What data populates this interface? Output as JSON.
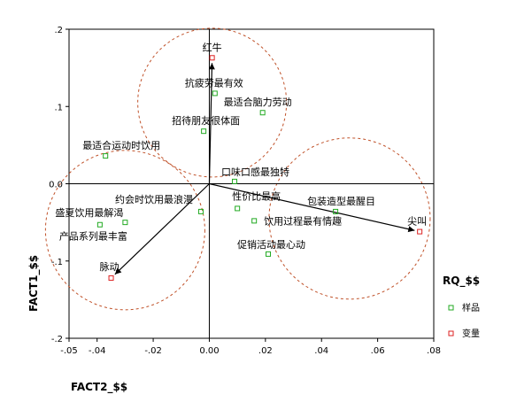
{
  "chart_data": {
    "type": "scatter",
    "title": "",
    "xlabel": "FACT2_$$",
    "ylabel": "FACT1_$$",
    "xlim": [
      -0.05,
      0.08
    ],
    "ylim": [
      -0.2,
      0.2
    ],
    "x_ticks": [
      -0.05,
      -0.04,
      -0.02,
      0.0,
      0.02,
      0.04,
      0.06,
      0.08
    ],
    "x_tick_labels": [
      "-.05",
      "-.04",
      "-.02",
      "0.00",
      ".02",
      ".04",
      ".06",
      ".08"
    ],
    "y_ticks": [
      -0.2,
      -0.1,
      0.0,
      0.1,
      0.2
    ],
    "y_tick_labels": [
      "-.2",
      "-.1",
      "0.0",
      ".1",
      ".2"
    ],
    "grid": false,
    "legend_title": "RQ_$$",
    "legend_placement": "right",
    "series": [
      {
        "name": "样品",
        "color": "#22aa22",
        "marker": "square-open",
        "points": [
          {
            "label": "抗疲劳最有效",
            "x": 0.002,
            "y": 0.117
          },
          {
            "label": "最适合脑力劳动",
            "x": 0.019,
            "y": 0.092
          },
          {
            "label": "招待朋友很体面",
            "x": -0.002,
            "y": 0.068
          },
          {
            "label": "最适合运动时饮用",
            "x": -0.037,
            "y": 0.036
          },
          {
            "label": "口味口感最独特",
            "x": 0.009,
            "y": 0.003
          },
          {
            "label": "约会时饮用最浪漫",
            "x": -0.003,
            "y": -0.036
          },
          {
            "label": "性价比最高",
            "x": 0.01,
            "y": -0.032
          },
          {
            "label": "包装造型最醒目",
            "x": 0.045,
            "y": -0.036
          },
          {
            "label": "盛夏饮用最解渴",
            "x": -0.03,
            "y": -0.05
          },
          {
            "label": "产品系列最丰富",
            "x": -0.039,
            "y": -0.053
          },
          {
            "label": "饮用过程最有情趣",
            "x": 0.016,
            "y": -0.048
          },
          {
            "label": "促销活动最心动",
            "x": 0.021,
            "y": -0.091
          }
        ]
      },
      {
        "name": "变量",
        "color": "#dd2222",
        "marker": "square-open",
        "points": [
          {
            "label": "红牛",
            "x": 0.001,
            "y": 0.163
          },
          {
            "label": "尖叫",
            "x": 0.075,
            "y": -0.062
          },
          {
            "label": "脉动",
            "x": -0.035,
            "y": -0.122
          }
        ]
      }
    ],
    "annotations": {
      "vectors_from_origin_to": [
        "红牛",
        "尖叫",
        "脉动"
      ],
      "dashed_circles_around": [
        "红牛",
        "尖叫",
        "脉动"
      ]
    }
  }
}
